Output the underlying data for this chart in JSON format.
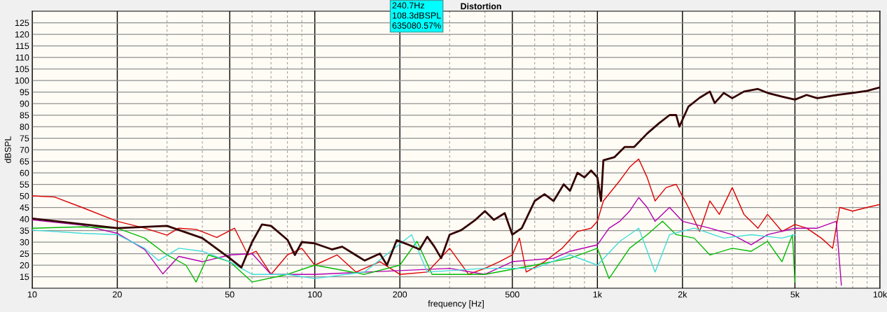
{
  "chart_data": {
    "type": "line",
    "title": "Distortion",
    "xlabel": "frequency [Hz]",
    "ylabel": "dBSPL",
    "annotations": [
      "240.7Hz",
      "108.3dBSPL",
      "635080.57%"
    ],
    "log": "x",
    "grid": true,
    "legend": false,
    "line_style": "solid",
    "xlim": [
      10,
      10000
    ],
    "xticks": [
      {
        "value": 10,
        "label": "10"
      },
      20,
      50,
      100,
      200,
      500,
      {
        "value": 1000,
        "label": "1k"
      },
      {
        "value": 2000,
        "label": "2k"
      },
      {
        "value": 5000,
        "label": "5k"
      },
      {
        "value": 10000,
        "label": "10k"
      }
    ],
    "ylim": [
      10,
      130
    ],
    "yticks": [
      15,
      20,
      25,
      30,
      35,
      40,
      45,
      50,
      55,
      60,
      65,
      70,
      75,
      80,
      85,
      90,
      95,
      100,
      105,
      110,
      115,
      120,
      125
    ],
    "series": [
      {
        "color": "#dd0000",
        "x": [
          10,
          12,
          15,
          20,
          25,
          30,
          33,
          38,
          45,
          52,
          58,
          62,
          70,
          80,
          90,
          100,
          120,
          140,
          170,
          200,
          250,
          300,
          350,
          400,
          450,
          500,
          530,
          560,
          650,
          750,
          850,
          950,
          1000,
          1050,
          1200,
          1300,
          1400,
          1500,
          1600,
          1750,
          1900,
          2100,
          2300,
          2500,
          2700,
          3000,
          3300,
          3700,
          4000,
          4500,
          5000,
          5500,
          6200,
          6800,
          7200,
          8000,
          9000,
          10000
        ],
        "values": [
          50,
          49.5,
          45,
          39,
          36,
          33,
          36,
          35.5,
          32,
          36,
          24.4,
          26,
          16,
          24.4,
          27.3,
          20,
          24.4,
          17,
          21.5,
          16,
          17,
          27.3,
          16,
          18.6,
          21.5,
          24.4,
          31.7,
          17,
          21.5,
          27.3,
          34.6,
          36,
          39,
          47.8,
          56.6,
          62.4,
          66,
          58,
          47.8,
          53.6,
          55,
          45,
          34.6,
          47.8,
          42,
          53.6,
          42,
          36,
          42,
          34.6,
          37.6,
          36,
          31.7,
          27.3,
          45,
          43.4,
          45,
          46.3
        ]
      },
      {
        "color": "#b000b0",
        "x": [
          10,
          15,
          20,
          25,
          29,
          33,
          40,
          50,
          60,
          70,
          100,
          300,
          400,
          500,
          700,
          800,
          1000,
          1100,
          1200,
          1300,
          1400,
          1500,
          1600,
          1800,
          2000,
          2500,
          3000,
          3500,
          4000,
          5000,
          6000,
          7000,
          7300
        ],
        "values": [
          39.6,
          37.3,
          33.8,
          26.8,
          16.2,
          23.8,
          21.5,
          24.4,
          25,
          16,
          16,
          18.6,
          16,
          21.5,
          23,
          26,
          28.8,
          36,
          39,
          43.4,
          49.3,
          45,
          39,
          45,
          39,
          36,
          33.2,
          28.8,
          33.2,
          36,
          36,
          39,
          11.3
        ]
      },
      {
        "color": "#00bb00",
        "x": [
          10,
          15,
          20,
          25,
          30,
          35,
          38,
          42,
          50,
          60,
          80,
          100,
          150,
          200,
          230,
          260,
          400,
          600,
          800,
          1000,
          1100,
          1300,
          1500,
          1700,
          1900,
          2200,
          2500,
          3000,
          3500,
          4000,
          4500,
          4900,
          5000
        ],
        "values": [
          36,
          36.6,
          36,
          31.7,
          24.4,
          20,
          12.7,
          24.4,
          21.5,
          12.7,
          16,
          20,
          16,
          20,
          30.3,
          16,
          16,
          20,
          23,
          27.3,
          14.2,
          27.3,
          33.2,
          39,
          33.2,
          31.7,
          24.4,
          27.3,
          26,
          30.3,
          21.5,
          33.2,
          12.7
        ]
      },
      {
        "color": "#40dcdc",
        "x": [
          10,
          15,
          20,
          25,
          28,
          33,
          40,
          50,
          60,
          80,
          100,
          150,
          220,
          250,
          400,
          600,
          800,
          1000,
          1200,
          1400,
          1600,
          1800,
          2200,
          2800,
          3500,
          4500,
          5000
        ],
        "values": [
          35.2,
          33.8,
          33.2,
          27.3,
          22,
          27.3,
          26,
          21.5,
          16,
          16,
          14.2,
          17,
          33.2,
          17,
          18.6,
          18.6,
          24.4,
          20,
          30.3,
          36,
          17,
          33.2,
          36,
          31.7,
          33.2,
          31.7,
          33.2
        ]
      },
      {
        "color": "#330000",
        "x": [
          10,
          20,
          30,
          40,
          50,
          55,
          60,
          65,
          70,
          80,
          85,
          90,
          100,
          115,
          125,
          150,
          170,
          180,
          195,
          215,
          235,
          250,
          265,
          280,
          300,
          330,
          370,
          400,
          430,
          470,
          500,
          540,
          600,
          650,
          700,
          760,
          800,
          850,
          900,
          950,
          1000,
          1030,
          1050,
          1150,
          1250,
          1350,
          1500,
          1650,
          1800,
          1900,
          1950,
          2100,
          2300,
          2500,
          2600,
          2800,
          3000,
          3300,
          3700,
          4000,
          4500,
          5000,
          5500,
          6000,
          7000,
          8000,
          9000,
          10000
        ],
        "values": [
          40.2,
          36,
          37,
          31.7,
          23,
          19,
          30,
          37.6,
          37,
          31,
          24.4,
          30,
          29.4,
          26.8,
          28,
          22,
          25,
          20,
          30.8,
          28.8,
          26.8,
          32.3,
          28,
          23,
          33.2,
          35.2,
          39.6,
          43.4,
          39.6,
          42.5,
          33.2,
          36,
          47.8,
          50.7,
          47.8,
          55,
          52.2,
          60,
          58,
          61,
          58,
          47.8,
          65.4,
          66.8,
          71.2,
          71.2,
          77,
          81.4,
          85,
          85,
          80,
          88.7,
          92.5,
          95.2,
          90.2,
          94.6,
          92.3,
          95.2,
          96.3,
          94.6,
          93,
          91.7,
          93.7,
          92.3,
          93.7,
          94.6,
          95.5,
          97
        ]
      }
    ]
  }
}
